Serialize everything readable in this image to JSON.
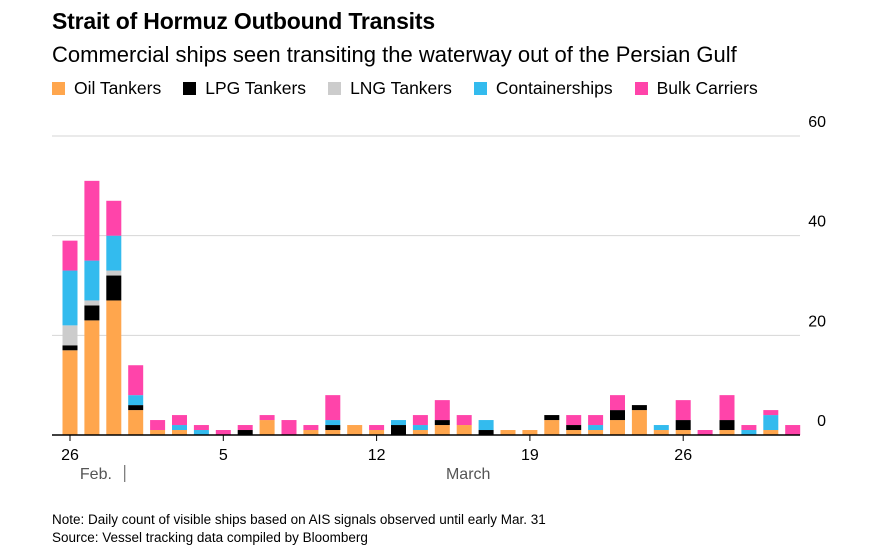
{
  "header": {
    "title": "Strait of Hormuz Outbound Transits",
    "subtitle": "Commercial ships seen transiting the waterway out of the Persian Gulf"
  },
  "footer": {
    "note": "Note: Daily count of visible ships based on AIS signals observed until early Mar. 31",
    "source": "Source: Vessel tracking data compiled by Bloomberg"
  },
  "chart_data": {
    "type": "bar",
    "stacked": true,
    "title": "Strait of Hormuz Outbound Transits",
    "subtitle": "Commercial ships seen transiting the waterway out of the Persian Gulf",
    "xlabel": "",
    "ylabel": "",
    "ylim": [
      0,
      60
    ],
    "yticks": [
      0,
      20,
      40,
      60
    ],
    "x_tick_labels": [
      {
        "index": 0,
        "label": "26"
      },
      {
        "index": 7,
        "label": "5"
      },
      {
        "index": 14,
        "label": "12"
      },
      {
        "index": 21,
        "label": "19"
      },
      {
        "index": 28,
        "label": "26"
      }
    ],
    "month_labels": [
      {
        "index": 1,
        "label": "Feb."
      },
      {
        "index": 18,
        "label": "March"
      }
    ],
    "categories": [
      "Feb 26",
      "Feb 27",
      "Feb 28",
      "Mar 1",
      "Mar 2",
      "Mar 3",
      "Mar 4",
      "Mar 5",
      "Mar 6",
      "Mar 7",
      "Mar 8",
      "Mar 9",
      "Mar 10",
      "Mar 11",
      "Mar 12",
      "Mar 13",
      "Mar 14",
      "Mar 15",
      "Mar 16",
      "Mar 17",
      "Mar 18",
      "Mar 19",
      "Mar 20",
      "Mar 21",
      "Mar 22",
      "Mar 23",
      "Mar 24",
      "Mar 25",
      "Mar 26",
      "Mar 27",
      "Mar 28",
      "Mar 29",
      "Mar 30",
      "Mar 31",
      "Apr 1"
    ],
    "series": [
      {
        "name": "Oil Tankers",
        "color": "#ffa64d",
        "values": [
          17,
          23,
          27,
          5,
          1,
          1,
          0,
          0,
          0,
          3,
          0,
          1,
          1,
          2,
          1,
          0,
          1,
          2,
          2,
          0,
          1,
          1,
          3,
          1,
          1,
          3,
          5,
          1,
          1,
          0,
          1,
          0,
          1,
          0,
          0
        ]
      },
      {
        "name": "LPG Tankers",
        "color": "#000000",
        "values": [
          1,
          3,
          5,
          1,
          0,
          0,
          0,
          0,
          1,
          0,
          0,
          0,
          1,
          0,
          0,
          2,
          0,
          1,
          0,
          1,
          0,
          0,
          1,
          1,
          0,
          2,
          1,
          0,
          2,
          0,
          2,
          0,
          0,
          0,
          0
        ]
      },
      {
        "name": "LNG Tankers",
        "color": "#cccccc",
        "values": [
          4,
          1,
          1,
          0,
          0,
          0,
          0,
          0,
          0,
          0,
          0,
          0,
          0,
          0,
          0,
          0,
          0,
          0,
          0,
          0,
          0,
          0,
          0,
          0,
          0,
          0,
          0,
          0,
          0,
          0,
          0,
          0,
          0,
          0,
          0
        ]
      },
      {
        "name": "Containerships",
        "color": "#33bbee",
        "values": [
          11,
          8,
          7,
          2,
          0,
          1,
          1,
          0,
          0,
          0,
          0,
          0,
          1,
          0,
          0,
          1,
          1,
          0,
          0,
          2,
          0,
          0,
          0,
          0,
          1,
          0,
          0,
          1,
          0,
          0,
          0,
          1,
          3,
          0,
          0
        ]
      },
      {
        "name": "Bulk Carriers",
        "color": "#ff44aa",
        "values": [
          6,
          16,
          7,
          6,
          2,
          2,
          1,
          1,
          1,
          1,
          3,
          1,
          5,
          0,
          1,
          0,
          2,
          4,
          2,
          0,
          0,
          0,
          0,
          2,
          2,
          3,
          0,
          0,
          4,
          1,
          5,
          1,
          1,
          2,
          0
        ]
      }
    ]
  }
}
